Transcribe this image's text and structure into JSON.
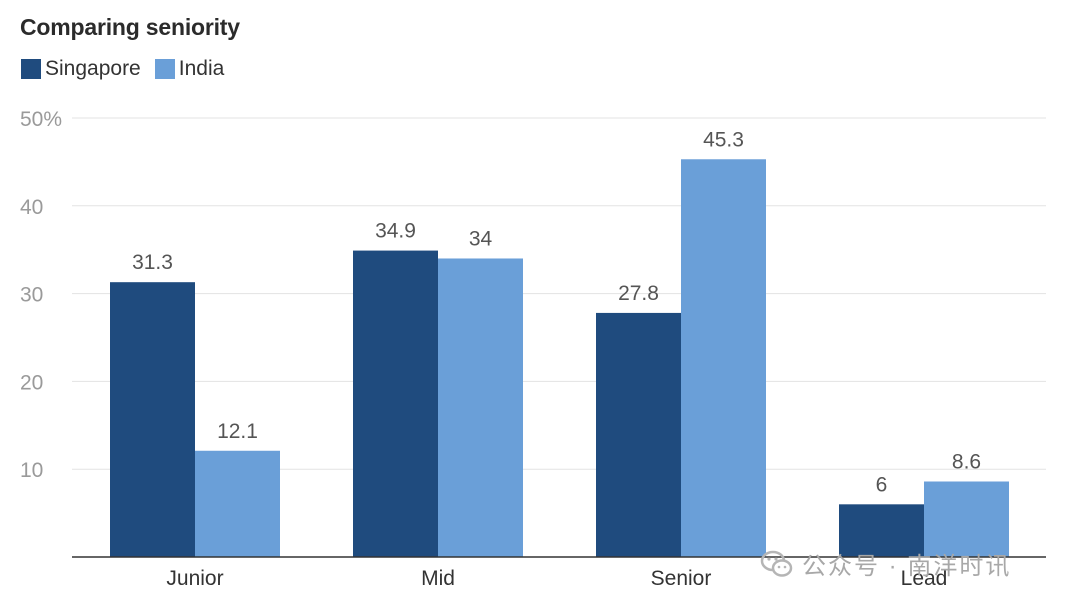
{
  "chart_data": {
    "type": "bar",
    "title": "Comparing seniority",
    "categories": [
      "Junior",
      "Mid",
      "Senior",
      "Lead"
    ],
    "series": [
      {
        "name": "Singapore",
        "color": "#1f4b7e",
        "values": [
          31.3,
          34.9,
          27.8,
          6
        ],
        "labels": [
          "31.3",
          "34.9",
          "27.8",
          "6"
        ]
      },
      {
        "name": "India",
        "color": "#6a9fd8",
        "values": [
          12.1,
          34,
          45.3,
          8.6
        ],
        "labels": [
          "12.1",
          "34",
          "45.3",
          "8.6"
        ]
      }
    ],
    "yticks": [
      {
        "value": 10,
        "label": "10"
      },
      {
        "value": 20,
        "label": "20"
      },
      {
        "value": 30,
        "label": "30"
      },
      {
        "value": 40,
        "label": "40"
      },
      {
        "value": 50,
        "label": "50%"
      }
    ],
    "ylim": [
      0,
      50
    ],
    "xlabel": "",
    "ylabel": "",
    "grid": true,
    "legend_position": "top-left"
  },
  "watermark": {
    "text": "公众号 · 南洋时讯",
    "icon": "wechat-icon"
  }
}
